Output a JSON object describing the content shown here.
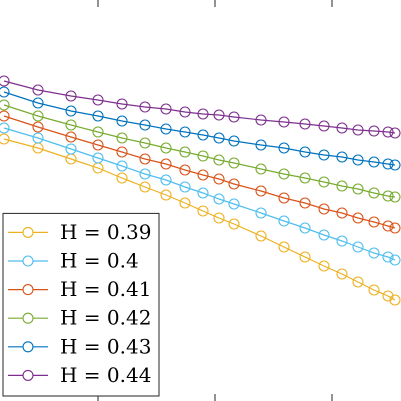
{
  "chart_data": {
    "type": "line",
    "x": [
      4,
      38,
      71,
      98,
      122,
      145,
      166,
      185,
      203,
      219,
      234,
      261,
      284,
      305,
      324,
      342,
      358,
      374,
      388,
      395
    ],
    "xlim": [
      0,
      401
    ],
    "ylim": [
      0,
      401
    ],
    "xticks": [
      98,
      215,
      332
    ],
    "legend": "lower left",
    "series": [
      {
        "name": "H = 0.39",
        "color": "#EDB120",
        "values": [
          262,
          253,
          242,
          233,
          223,
          214,
          206,
          198,
          190,
          183,
          177,
          165,
          154,
          144,
          135,
          127,
          119,
          111,
          105,
          101
        ]
      },
      {
        "name": "H = 0.4",
        "color": "#4DBEEE",
        "values": [
          273,
          263,
          252,
          243,
          235,
          227,
          221,
          214,
          208,
          202,
          197,
          188,
          180,
          173,
          166,
          160,
          154,
          148,
          144,
          141
        ]
      },
      {
        "name": "H = 0.41",
        "color": "#D95319",
        "values": [
          285,
          274,
          264,
          256,
          249,
          242,
          237,
          231,
          226,
          222,
          217,
          210,
          203,
          198,
          192,
          188,
          183,
          179,
          175,
          173
        ]
      },
      {
        "name": "H = 0.42",
        "color": "#77AC30",
        "values": [
          296,
          285,
          276,
          269,
          263,
          258,
          253,
          249,
          245,
          241,
          238,
          232,
          227,
          223,
          219,
          215,
          212,
          208,
          205,
          204
        ]
      },
      {
        "name": "H = 0.43",
        "color": "#0072BD",
        "values": [
          309,
          298,
          290,
          285,
          280,
          276,
          272,
          269,
          266,
          263,
          260,
          256,
          253,
          249,
          246,
          244,
          241,
          239,
          237,
          236
        ]
      },
      {
        "name": "H = 0.44",
        "color": "#7E2F8E",
        "values": [
          320,
          311,
          305,
          301,
          297,
          294,
          292,
          289,
          287,
          286,
          284,
          281,
          279,
          277,
          275,
          273,
          271,
          270,
          269,
          268
        ]
      }
    ]
  }
}
